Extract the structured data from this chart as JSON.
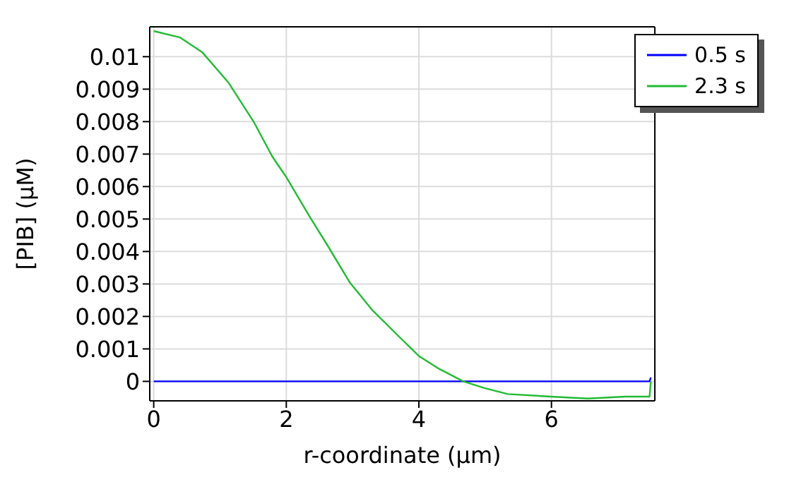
{
  "chart_data": {
    "type": "line",
    "xlabel": "r-coordinate (µm)",
    "ylabel": "[PIB] (µM)",
    "xlim": [
      -0.06,
      7.56
    ],
    "xticks": [
      0,
      2,
      4,
      6
    ],
    "ylim": [
      -0.0006,
      0.01092
    ],
    "yticks": [
      0,
      0.001,
      0.002,
      0.003,
      0.004,
      0.005,
      0.006,
      0.007,
      0.008,
      0.009,
      0.01
    ],
    "grid": true,
    "legend": "top right",
    "marker": "none",
    "line_style": "solid",
    "series": [
      {
        "name": "0.5 s",
        "color": "#0000ff",
        "x": [
          0,
          7.48,
          7.5
        ],
        "values": [
          0,
          0,
          0.00012
        ]
      },
      {
        "name": "2.3 s",
        "color": "#22bb33",
        "x": [
          0,
          0.4,
          0.735,
          1.125,
          1.515,
          1.79,
          2.0,
          2.35,
          2.63,
          2.96,
          3.3,
          3.69,
          3.85,
          4,
          4.31,
          4.67,
          4.98,
          5.34,
          5.99,
          6.55,
          7.11,
          7.48,
          7.5
        ],
        "values": [
          0.01079,
          0.01059,
          0.01013,
          0.00921,
          0.00797,
          0.00692,
          0.00629,
          0.00508,
          0.00416,
          0.00304,
          0.00219,
          0.0014,
          0.00108,
          0.00078,
          0.00038,
          0,
          -0.0002,
          -0.00039,
          -0.00047,
          -0.00053,
          -0.00047,
          -0.00047,
          0
        ]
      }
    ]
  }
}
